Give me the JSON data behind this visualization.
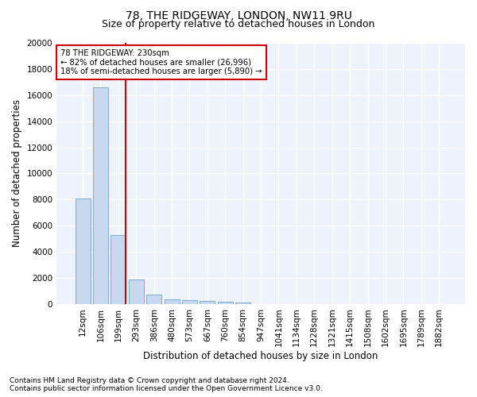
{
  "title": "78, THE RIDGEWAY, LONDON, NW11 9RU",
  "subtitle": "Size of property relative to detached houses in London",
  "xlabel": "Distribution of detached houses by size in London",
  "ylabel": "Number of detached properties",
  "categories": [
    "12sqm",
    "106sqm",
    "199sqm",
    "293sqm",
    "386sqm",
    "480sqm",
    "573sqm",
    "667sqm",
    "760sqm",
    "854sqm",
    "947sqm",
    "1041sqm",
    "1134sqm",
    "1228sqm",
    "1321sqm",
    "1415sqm",
    "1508sqm",
    "1602sqm",
    "1695sqm",
    "1789sqm",
    "1882sqm"
  ],
  "values": [
    8100,
    16600,
    5300,
    1850,
    700,
    370,
    280,
    220,
    175,
    130,
    0,
    0,
    0,
    0,
    0,
    0,
    0,
    0,
    0,
    0,
    0
  ],
  "bar_color": "#c8d8ee",
  "bar_edge_color": "#7aaad0",
  "vline_color": "#cc0000",
  "annotation_text": "78 THE RIDGEWAY: 230sqm\n← 82% of detached houses are smaller (26,996)\n18% of semi-detached houses are larger (5,890) →",
  "annotation_box_color": "#cc0000",
  "ylim": [
    0,
    20000
  ],
  "yticks": [
    0,
    2000,
    4000,
    6000,
    8000,
    10000,
    12000,
    14000,
    16000,
    18000,
    20000
  ],
  "footnote1": "Contains HM Land Registry data © Crown copyright and database right 2024.",
  "footnote2": "Contains public sector information licensed under the Open Government Licence v3.0.",
  "background_color": "#eef2fb",
  "grid_color": "#ffffff",
  "title_fontsize": 10,
  "subtitle_fontsize": 9,
  "axis_label_fontsize": 8.5,
  "tick_fontsize": 7.5,
  "footnote_fontsize": 6.5
}
